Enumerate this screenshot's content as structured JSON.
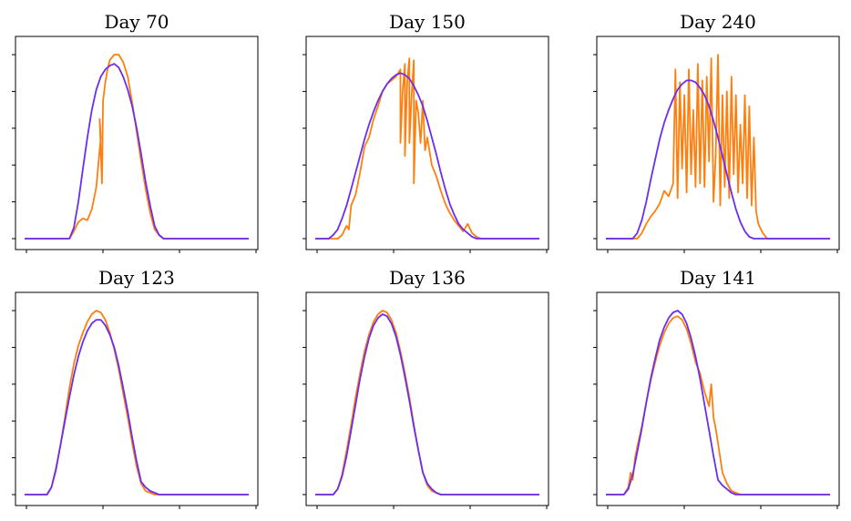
{
  "colors": {
    "measured": "#ff7f0e",
    "model": "#6a2ef0"
  },
  "chart_data": [
    {
      "type": "line",
      "title": "Day 70",
      "xlim": [
        0,
        1
      ],
      "ylim": [
        0,
        1
      ],
      "series": [
        {
          "role": "measured",
          "x": [
            0,
            0.2,
            0.22,
            0.24,
            0.26,
            0.28,
            0.3,
            0.32,
            0.34,
            0.335,
            0.345,
            0.35,
            0.36,
            0.37,
            0.38,
            0.4,
            0.42,
            0.44,
            0.46,
            0.48,
            0.5,
            0.52,
            0.54,
            0.56,
            0.58,
            0.6,
            0.62,
            0.64,
            0.66,
            1.0
          ],
          "y": [
            0,
            0,
            0.04,
            0.09,
            0.11,
            0.1,
            0.16,
            0.28,
            0.55,
            0.65,
            0.3,
            0.75,
            0.85,
            0.92,
            0.97,
            1.0,
            1.0,
            0.96,
            0.88,
            0.74,
            0.58,
            0.42,
            0.27,
            0.14,
            0.05,
            0.02,
            0,
            0,
            0,
            0
          ]
        },
        {
          "role": "model",
          "x": [
            0,
            0.2,
            0.22,
            0.24,
            0.26,
            0.28,
            0.3,
            0.32,
            0.34,
            0.36,
            0.38,
            0.4,
            0.42,
            0.44,
            0.46,
            0.48,
            0.5,
            0.52,
            0.54,
            0.56,
            0.58,
            0.6,
            0.62,
            0.64,
            0.66,
            1.0
          ],
          "y": [
            0,
            0,
            0.06,
            0.2,
            0.38,
            0.55,
            0.7,
            0.81,
            0.88,
            0.92,
            0.94,
            0.95,
            0.93,
            0.88,
            0.81,
            0.72,
            0.6,
            0.46,
            0.31,
            0.18,
            0.07,
            0.02,
            0,
            0,
            0,
            0
          ]
        }
      ]
    },
    {
      "type": "line",
      "title": "Day 150",
      "xlim": [
        0,
        1
      ],
      "ylim": [
        0,
        1
      ],
      "series": [
        {
          "role": "measured",
          "x": [
            0,
            0.1,
            0.12,
            0.14,
            0.15,
            0.16,
            0.18,
            0.2,
            0.22,
            0.24,
            0.26,
            0.28,
            0.3,
            0.32,
            0.34,
            0.36,
            0.38,
            0.38,
            0.39,
            0.4,
            0.4,
            0.41,
            0.42,
            0.42,
            0.43,
            0.44,
            0.44,
            0.45,
            0.46,
            0.47,
            0.48,
            0.49,
            0.5,
            0.52,
            0.54,
            0.56,
            0.58,
            0.6,
            0.62,
            0.64,
            0.66,
            0.68,
            0.7,
            0.72,
            0.74,
            0.76,
            1.0
          ],
          "y": [
            0,
            0,
            0.02,
            0.07,
            0.05,
            0.18,
            0.24,
            0.36,
            0.5,
            0.55,
            0.65,
            0.72,
            0.8,
            0.84,
            0.86,
            0.88,
            0.92,
            0.52,
            0.8,
            0.95,
            0.45,
            0.85,
            0.98,
            0.52,
            0.78,
            0.97,
            0.3,
            0.75,
            0.68,
            0.52,
            0.75,
            0.48,
            0.55,
            0.4,
            0.34,
            0.26,
            0.19,
            0.14,
            0.1,
            0.07,
            0.04,
            0.08,
            0.03,
            0.01,
            0,
            0,
            0
          ]
        },
        {
          "role": "model",
          "x": [
            0,
            0.06,
            0.08,
            0.1,
            0.12,
            0.14,
            0.16,
            0.18,
            0.2,
            0.22,
            0.24,
            0.26,
            0.28,
            0.3,
            0.32,
            0.34,
            0.36,
            0.38,
            0.4,
            0.42,
            0.44,
            0.46,
            0.48,
            0.5,
            0.52,
            0.54,
            0.56,
            0.58,
            0.6,
            0.62,
            0.64,
            0.66,
            0.68,
            0.7,
            0.72,
            0.74,
            0.76,
            0.78,
            1.0
          ],
          "y": [
            0,
            0,
            0.02,
            0.05,
            0.11,
            0.18,
            0.27,
            0.36,
            0.45,
            0.54,
            0.62,
            0.69,
            0.75,
            0.8,
            0.84,
            0.87,
            0.89,
            0.9,
            0.89,
            0.87,
            0.83,
            0.78,
            0.72,
            0.64,
            0.55,
            0.46,
            0.36,
            0.27,
            0.19,
            0.13,
            0.08,
            0.05,
            0.03,
            0.01,
            0,
            0,
            0,
            0,
            0
          ]
        }
      ]
    },
    {
      "type": "line",
      "title": "Day 240",
      "xlim": [
        0,
        1
      ],
      "ylim": [
        0,
        1
      ],
      "series": [
        {
          "role": "measured",
          "x": [
            0,
            0.14,
            0.16,
            0.18,
            0.2,
            0.22,
            0.24,
            0.26,
            0.28,
            0.3,
            0.31,
            0.32,
            0.33,
            0.34,
            0.35,
            0.36,
            0.37,
            0.38,
            0.39,
            0.4,
            0.41,
            0.42,
            0.43,
            0.44,
            0.45,
            0.46,
            0.47,
            0.48,
            0.49,
            0.5,
            0.51,
            0.52,
            0.53,
            0.54,
            0.55,
            0.56,
            0.57,
            0.58,
            0.59,
            0.6,
            0.61,
            0.62,
            0.63,
            0.64,
            0.65,
            0.66,
            0.67,
            0.68,
            0.7,
            0.72,
            1.0
          ],
          "y": [
            0,
            0,
            0.03,
            0.08,
            0.12,
            0.15,
            0.19,
            0.26,
            0.23,
            0.3,
            0.92,
            0.22,
            0.85,
            0.38,
            0.78,
            0.25,
            0.92,
            0.35,
            0.7,
            0.28,
            0.95,
            0.3,
            0.86,
            0.28,
            0.88,
            0.42,
            0.98,
            0.2,
            0.45,
            1.0,
            0.18,
            0.78,
            0.28,
            0.8,
            0.22,
            0.88,
            0.35,
            0.78,
            0.25,
            0.62,
            0.3,
            0.78,
            0.22,
            0.72,
            0.18,
            0.55,
            0.15,
            0.08,
            0.03,
            0,
            0
          ]
        },
        {
          "role": "model",
          "x": [
            0,
            0.12,
            0.14,
            0.16,
            0.18,
            0.2,
            0.22,
            0.24,
            0.26,
            0.28,
            0.3,
            0.32,
            0.34,
            0.36,
            0.38,
            0.4,
            0.42,
            0.44,
            0.46,
            0.48,
            0.5,
            0.52,
            0.54,
            0.56,
            0.58,
            0.6,
            0.62,
            0.64,
            0.66,
            0.68,
            0.7,
            0.72,
            0.74,
            1.0
          ],
          "y": [
            0,
            0,
            0.03,
            0.1,
            0.2,
            0.32,
            0.43,
            0.54,
            0.63,
            0.7,
            0.76,
            0.81,
            0.84,
            0.86,
            0.86,
            0.85,
            0.82,
            0.78,
            0.72,
            0.64,
            0.55,
            0.45,
            0.35,
            0.25,
            0.16,
            0.09,
            0.04,
            0.01,
            0,
            0,
            0,
            0,
            0,
            0
          ]
        }
      ]
    },
    {
      "type": "line",
      "title": "Day 123",
      "xlim": [
        0,
        1
      ],
      "ylim": [
        0,
        1
      ],
      "series": [
        {
          "role": "measured",
          "x": [
            0,
            0.1,
            0.12,
            0.14,
            0.16,
            0.18,
            0.2,
            0.22,
            0.24,
            0.26,
            0.28,
            0.3,
            0.32,
            0.34,
            0.36,
            0.38,
            0.4,
            0.42,
            0.44,
            0.46,
            0.48,
            0.5,
            0.52,
            0.54,
            0.56,
            0.58,
            0.6,
            0.62,
            0.64,
            0.66,
            0.68,
            0.7,
            1.0
          ],
          "y": [
            0,
            0,
            0.04,
            0.13,
            0.27,
            0.42,
            0.58,
            0.71,
            0.81,
            0.88,
            0.94,
            0.98,
            1.0,
            0.99,
            0.95,
            0.88,
            0.79,
            0.68,
            0.55,
            0.42,
            0.28,
            0.15,
            0.06,
            0.02,
            0.01,
            0,
            0,
            0,
            0,
            0,
            0,
            0,
            0
          ]
        },
        {
          "role": "model",
          "x": [
            0,
            0.1,
            0.12,
            0.14,
            0.16,
            0.18,
            0.2,
            0.22,
            0.24,
            0.26,
            0.28,
            0.3,
            0.32,
            0.34,
            0.36,
            0.38,
            0.4,
            0.42,
            0.44,
            0.46,
            0.48,
            0.5,
            0.52,
            0.54,
            0.56,
            0.58,
            0.6,
            0.62,
            0.64,
            0.66,
            0.68,
            0.7,
            1.0
          ],
          "y": [
            0,
            0,
            0.04,
            0.14,
            0.27,
            0.4,
            0.53,
            0.65,
            0.75,
            0.83,
            0.89,
            0.93,
            0.95,
            0.95,
            0.92,
            0.87,
            0.8,
            0.7,
            0.58,
            0.45,
            0.31,
            0.18,
            0.07,
            0.04,
            0.02,
            0.01,
            0,
            0,
            0,
            0,
            0,
            0,
            0
          ]
        }
      ]
    },
    {
      "type": "line",
      "title": "Day 136",
      "xlim": [
        0,
        1
      ],
      "ylim": [
        0,
        1
      ],
      "series": [
        {
          "role": "measured",
          "x": [
            0,
            0.08,
            0.1,
            0.12,
            0.14,
            0.16,
            0.18,
            0.2,
            0.22,
            0.24,
            0.26,
            0.28,
            0.3,
            0.32,
            0.34,
            0.36,
            0.38,
            0.4,
            0.42,
            0.44,
            0.46,
            0.48,
            0.5,
            0.52,
            0.54,
            0.56,
            0.58,
            0.6,
            0.62,
            0.64,
            1.0
          ],
          "y": [
            0,
            0,
            0.03,
            0.11,
            0.24,
            0.38,
            0.53,
            0.66,
            0.78,
            0.87,
            0.94,
            0.98,
            1.0,
            0.99,
            0.95,
            0.88,
            0.78,
            0.66,
            0.53,
            0.38,
            0.24,
            0.12,
            0.05,
            0.02,
            0.01,
            0,
            0,
            0,
            0,
            0,
            0
          ]
        },
        {
          "role": "model",
          "x": [
            0,
            0.08,
            0.1,
            0.12,
            0.14,
            0.16,
            0.18,
            0.2,
            0.22,
            0.24,
            0.26,
            0.28,
            0.3,
            0.32,
            0.34,
            0.36,
            0.38,
            0.4,
            0.42,
            0.44,
            0.46,
            0.48,
            0.5,
            0.52,
            0.54,
            0.56,
            0.58,
            0.6,
            1.0
          ],
          "y": [
            0,
            0,
            0.03,
            0.1,
            0.21,
            0.35,
            0.49,
            0.63,
            0.75,
            0.85,
            0.92,
            0.96,
            0.98,
            0.97,
            0.93,
            0.86,
            0.76,
            0.64,
            0.51,
            0.37,
            0.24,
            0.12,
            0.06,
            0.03,
            0.01,
            0,
            0,
            0,
            0
          ]
        }
      ]
    },
    {
      "type": "line",
      "title": "Day 141",
      "xlim": [
        0,
        1
      ],
      "ylim": [
        0,
        1
      ],
      "series": [
        {
          "role": "measured",
          "x": [
            0,
            0.08,
            0.1,
            0.11,
            0.12,
            0.13,
            0.14,
            0.16,
            0.18,
            0.2,
            0.22,
            0.24,
            0.26,
            0.28,
            0.3,
            0.32,
            0.34,
            0.36,
            0.38,
            0.4,
            0.42,
            0.44,
            0.46,
            0.47,
            0.48,
            0.49,
            0.5,
            0.51,
            0.52,
            0.54,
            0.56,
            0.58,
            0.6,
            0.62,
            0.64,
            1.0
          ],
          "y": [
            0,
            0,
            0.04,
            0.12,
            0.08,
            0.2,
            0.26,
            0.37,
            0.5,
            0.62,
            0.72,
            0.81,
            0.88,
            0.93,
            0.96,
            0.97,
            0.95,
            0.9,
            0.82,
            0.72,
            0.66,
            0.56,
            0.48,
            0.6,
            0.42,
            0.36,
            0.28,
            0.2,
            0.12,
            0.06,
            0.02,
            0.01,
            0,
            0,
            0,
            0
          ]
        },
        {
          "role": "model",
          "x": [
            0,
            0.08,
            0.1,
            0.12,
            0.14,
            0.16,
            0.18,
            0.2,
            0.22,
            0.24,
            0.26,
            0.28,
            0.3,
            0.32,
            0.34,
            0.36,
            0.38,
            0.4,
            0.42,
            0.44,
            0.46,
            0.48,
            0.5,
            0.52,
            0.54,
            0.56,
            0.58,
            0.6,
            0.62,
            1.0
          ],
          "y": [
            0,
            0,
            0.03,
            0.11,
            0.23,
            0.36,
            0.5,
            0.63,
            0.74,
            0.84,
            0.91,
            0.96,
            0.99,
            1.0,
            0.98,
            0.93,
            0.85,
            0.75,
            0.63,
            0.49,
            0.35,
            0.21,
            0.08,
            0.05,
            0.03,
            0.01,
            0,
            0,
            0,
            0
          ]
        }
      ]
    }
  ]
}
